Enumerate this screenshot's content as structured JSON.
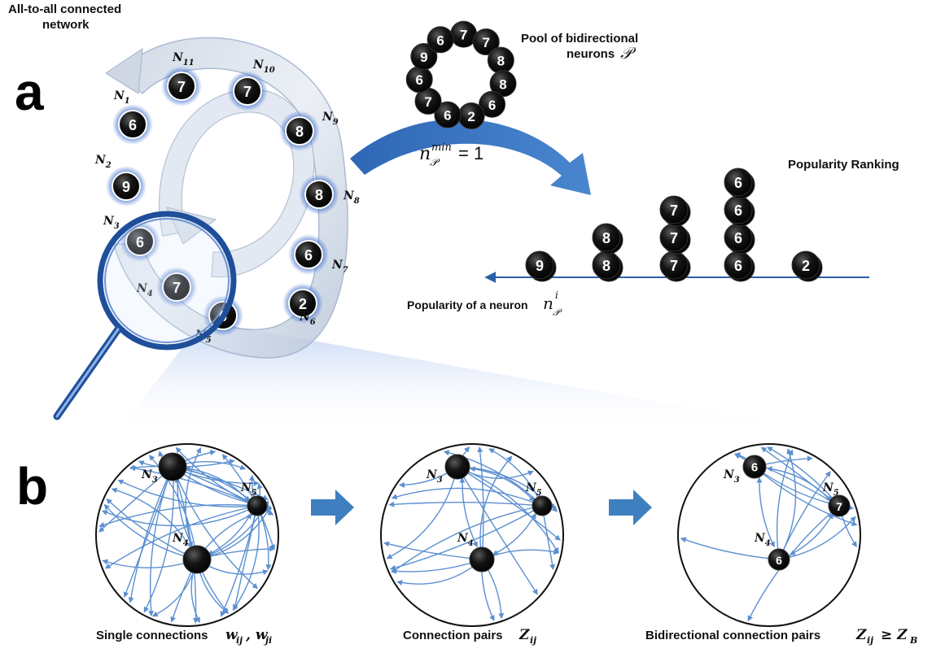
{
  "panel_a": {
    "letter": "a",
    "network_title_line1": "All-to-all connected",
    "network_title_line2": "network",
    "neurons": [
      {
        "id": "n1",
        "label": "N",
        "sub": "1",
        "value": "6"
      },
      {
        "id": "n2",
        "label": "N",
        "sub": "2",
        "value": "9"
      },
      {
        "id": "n3",
        "label": "N",
        "sub": "3",
        "value": "6"
      },
      {
        "id": "n4",
        "label": "N",
        "sub": "4",
        "value": "7"
      },
      {
        "id": "n5",
        "label": "N",
        "sub": "5",
        "value": "6"
      },
      {
        "id": "n6",
        "label": "N",
        "sub": "6",
        "value": "2"
      },
      {
        "id": "n7",
        "label": "N",
        "sub": "7",
        "value": "6"
      },
      {
        "id": "n8",
        "label": "N",
        "sub": "8",
        "value": "8"
      },
      {
        "id": "n9",
        "label": "N",
        "sub": "9",
        "value": "8"
      },
      {
        "id": "n10",
        "label": "N",
        "sub": "10",
        "value": "7"
      },
      {
        "id": "n11",
        "label": "N",
        "sub": "11",
        "value": "7"
      }
    ],
    "pool_title_line1": "Pool of bidirectional",
    "pool_title_line2": "neurons",
    "pool_symbol": "𝒫",
    "pool_values": [
      "7",
      "7",
      "8",
      "8",
      "6",
      "2",
      "6",
      "7",
      "6",
      "9",
      "6"
    ],
    "nmin_label": "n",
    "nmin_sup": "min",
    "nmin_sub": "𝒫",
    "nmin_rhs": "= 1",
    "ranking_title": "Popularity Ranking",
    "ranking_axis_label": "Popularity of a neuron",
    "ranking_axis_symbol": "n",
    "ranking_axis_sup": "i",
    "ranking_axis_sub": "𝒫",
    "ranking_stacks": [
      {
        "value": "9",
        "count": 1
      },
      {
        "value": "8",
        "count": 2
      },
      {
        "value": "7",
        "count": 3
      },
      {
        "value": "6",
        "count": 4
      },
      {
        "value": "2",
        "count": 1
      }
    ]
  },
  "panel_b": {
    "letter": "b",
    "circles": [
      {
        "caption": "Single connections",
        "caption_math": "w",
        "caption_sub1": "ij",
        "caption_sep": ", w",
        "caption_sub2": "ji",
        "n3": "N",
        "n3_sub": "3",
        "n4": "N",
        "n4_sub": "4",
        "n5": "N",
        "n5_sub": "5",
        "n3_value": "",
        "n4_value": "",
        "n5_value": ""
      },
      {
        "caption": "Connection pairs",
        "caption_math": "Z",
        "caption_sub1": "ij",
        "n3": "N",
        "n3_sub": "3",
        "n4": "N",
        "n4_sub": "4",
        "n5": "N",
        "n5_sub": "5",
        "n3_value": "",
        "n4_value": "",
        "n5_value": ""
      },
      {
        "caption": "Bidirectional connection pairs",
        "caption_math": "Z",
        "caption_sub1": "ij",
        "caption_rel": "≥ Z",
        "caption_sub2": "B",
        "n3": "N",
        "n3_sub": "3",
        "n4": "N",
        "n4_sub": "4",
        "n5": "N",
        "n5_sub": "5",
        "n3_value": "6",
        "n4_value": "6",
        "n5_value": "7"
      }
    ]
  },
  "colors": {
    "arrow_blue": "#3f7fc0",
    "line_blue": "#5b8fd0",
    "badge_black": "#111111",
    "glow_blue": "#3a6fd0",
    "lens_blue": "#1f4f9a"
  }
}
